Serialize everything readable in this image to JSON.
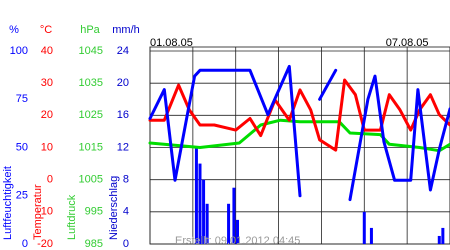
{
  "chart_data": {
    "type": "line",
    "date_labels": [
      "01.08.05",
      "07.08.05"
    ],
    "footer": "Erstellt: 09.01.2012 04:45",
    "xlim": [
      0,
      168
    ],
    "x_grid_step": 24,
    "grid": true,
    "y_unit": "%",
    "y_label": "Luftfeuchtigkeit",
    "y_color": "#0000ff",
    "ylim": [
      0,
      100
    ],
    "yticks": [
      0,
      25,
      50,
      75,
      100
    ],
    "y2_unit": "°C",
    "y2_label": "Temperatur",
    "y2_color": "#ff0000",
    "y2lim": [
      -20,
      40
    ],
    "y2ticks": [
      -20,
      -10,
      0,
      10,
      20,
      30,
      40
    ],
    "y3_unit": "hPa",
    "y3_label": "Luftdruck",
    "y3_color": "#33cc33",
    "y3lim": [
      985,
      1045
    ],
    "y3ticks": [
      985,
      995,
      1005,
      1015,
      1025,
      1035,
      1045
    ],
    "y4_unit": "mm/h",
    "y4_label": "Niederschlag",
    "y4_color": "#0000cc",
    "y4lim": [
      0,
      24
    ],
    "y4ticks": [
      0,
      4,
      8,
      12,
      16,
      20,
      24
    ],
    "series": [
      {
        "name": "Niederschlag",
        "type": "bar",
        "axis": "y4",
        "color": "#0000ff",
        "x": [
          26,
          28,
          30,
          32,
          44,
          47,
          49,
          120,
          124,
          162,
          164
        ],
        "values": [
          12,
          10,
          8,
          5,
          5,
          7,
          3,
          4,
          2,
          1,
          2
        ]
      },
      {
        "name": "Luftdruck",
        "axis": "y3",
        "color": "#00dd00",
        "x": [
          0,
          28,
          50,
          62,
          73,
          84,
          106,
          112,
          129,
          134,
          151,
          162,
          168
        ],
        "values": [
          1016.4,
          1015,
          1016.4,
          1022,
          1023.5,
          1023,
          1023,
          1019.5,
          1019,
          1016,
          1015,
          1014,
          1016
        ]
      },
      {
        "name": "Temperatur",
        "axis": "y2",
        "color": "#ff0000",
        "x": [
          0,
          8,
          16,
          22,
          28,
          36,
          48,
          56,
          62,
          70,
          78,
          84,
          90,
          95,
          104,
          109,
          115,
          120,
          129,
          134,
          140,
          146,
          151,
          157,
          162,
          168
        ],
        "values": [
          18.5,
          18.5,
          29.4,
          21.7,
          17,
          17,
          15.4,
          19,
          13.7,
          24.8,
          18.5,
          27.9,
          21.7,
          12.4,
          9.2,
          31,
          26.4,
          15.4,
          15.4,
          26.4,
          21.7,
          15.4,
          21.7,
          26.4,
          20.2,
          17
        ]
      },
      {
        "name": "Luftfeuchtigkeit",
        "axis": "y",
        "color": "#0000ff",
        "x": [
          0,
          8,
          14,
          25,
          28,
          56,
          66,
          78,
          84,
          89,
          95,
          104,
          108,
          112,
          122,
          126,
          131,
          137,
          146,
          150,
          157,
          162,
          168
        ],
        "values": [
          65,
          80,
          33,
          87,
          90,
          90,
          67,
          92,
          25,
          null,
          75,
          90,
          null,
          23,
          75,
          87,
          53,
          33,
          33,
          80,
          28,
          49,
          70
        ]
      }
    ]
  }
}
